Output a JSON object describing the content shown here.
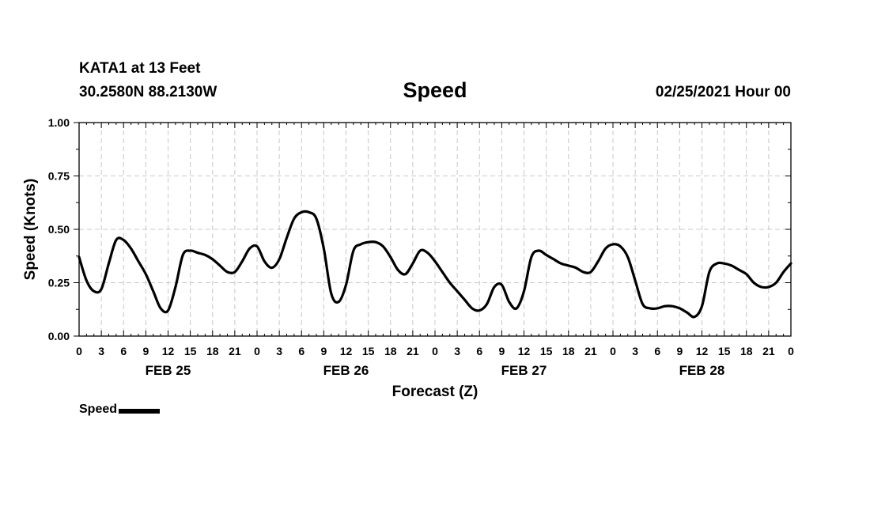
{
  "header": {
    "station": "KATA1 at 13 Feet",
    "coordinates": "30.2580N 88.2130W",
    "run_time": "02/25/2021 Hour 00"
  },
  "legend": {
    "label": "Speed",
    "color": "#000000"
  },
  "chart_data": {
    "type": "line",
    "title": "Speed",
    "xlabel": "Forecast (Z)",
    "ylabel": "Speed (Knots)",
    "xlim": [
      0,
      96
    ],
    "ylim": [
      0,
      1
    ],
    "yticks": [
      "0.00",
      "0.25",
      "0.50",
      "0.75",
      "1.00"
    ],
    "xtick_hours": [
      0,
      3,
      6,
      9,
      12,
      15,
      18,
      21,
      24,
      27,
      30,
      33,
      36,
      39,
      42,
      45,
      48,
      51,
      54,
      57,
      60,
      63,
      66,
      69,
      72,
      75,
      78,
      81,
      84,
      87,
      90,
      93,
      96
    ],
    "xtick_labels": [
      "0",
      "3",
      "6",
      "9",
      "12",
      "15",
      "18",
      "21",
      "0",
      "3",
      "6",
      "9",
      "12",
      "15",
      "18",
      "21",
      "0",
      "3",
      "6",
      "9",
      "12",
      "15",
      "18",
      "21",
      "0",
      "3",
      "6",
      "9",
      "12",
      "15",
      "18",
      "21",
      "0"
    ],
    "date_labels": [
      {
        "hour": 12,
        "label": "FEB 25"
      },
      {
        "hour": 36,
        "label": "FEB 26"
      },
      {
        "hour": 60,
        "label": "FEB 27"
      },
      {
        "hour": 84,
        "label": "FEB 28"
      }
    ],
    "grid": true,
    "series": [
      {
        "name": "Speed",
        "color": "#000000",
        "x": [
          0,
          1,
          2,
          3,
          4,
          5,
          6,
          7,
          8,
          9,
          10,
          11,
          12,
          13,
          14,
          15,
          16,
          17,
          18,
          19,
          20,
          21,
          22,
          23,
          24,
          25,
          26,
          27,
          28,
          29,
          30,
          31,
          32,
          33,
          34,
          35,
          36,
          37,
          38,
          39,
          40,
          41,
          42,
          43,
          44,
          45,
          46,
          47,
          48,
          49,
          50,
          51,
          52,
          53,
          54,
          55,
          56,
          57,
          58,
          59,
          60,
          61,
          62,
          63,
          64,
          65,
          66,
          67,
          68,
          69,
          70,
          71,
          72,
          73,
          74,
          75,
          76,
          77,
          78,
          79,
          80,
          81,
          82,
          83,
          84,
          85,
          86,
          87,
          88,
          89,
          90,
          91,
          92,
          93,
          94,
          95,
          96
        ],
        "y": [
          0.37,
          0.26,
          0.21,
          0.22,
          0.34,
          0.45,
          0.45,
          0.41,
          0.35,
          0.29,
          0.21,
          0.13,
          0.12,
          0.23,
          0.38,
          0.4,
          0.39,
          0.38,
          0.36,
          0.33,
          0.3,
          0.3,
          0.35,
          0.41,
          0.42,
          0.35,
          0.32,
          0.36,
          0.46,
          0.55,
          0.58,
          0.58,
          0.55,
          0.41,
          0.2,
          0.16,
          0.24,
          0.4,
          0.43,
          0.44,
          0.44,
          0.42,
          0.37,
          0.31,
          0.29,
          0.34,
          0.4,
          0.39,
          0.35,
          0.3,
          0.25,
          0.21,
          0.17,
          0.13,
          0.12,
          0.15,
          0.23,
          0.24,
          0.16,
          0.13,
          0.21,
          0.37,
          0.4,
          0.38,
          0.36,
          0.34,
          0.33,
          0.32,
          0.3,
          0.3,
          0.35,
          0.41,
          0.43,
          0.42,
          0.37,
          0.26,
          0.15,
          0.13,
          0.13,
          0.14,
          0.14,
          0.13,
          0.11,
          0.09,
          0.14,
          0.3,
          0.34,
          0.34,
          0.33,
          0.31,
          0.29,
          0.25,
          0.23,
          0.23,
          0.25,
          0.3,
          0.34
        ]
      }
    ]
  }
}
